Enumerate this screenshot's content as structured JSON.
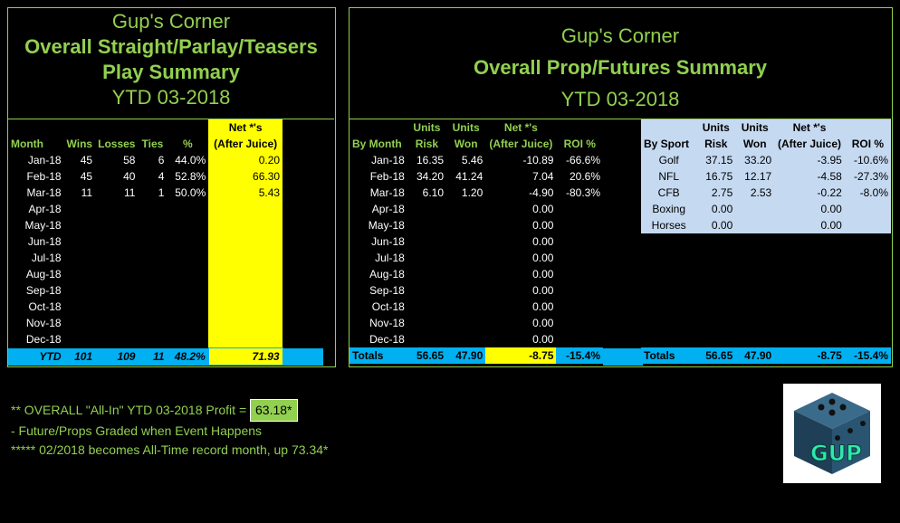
{
  "left_panel": {
    "title_lines": [
      "Gup's Corner",
      "Overall Straight/Parlay/Teasers",
      "Play Summary",
      "YTD 03-2018"
    ],
    "headers": {
      "month": "Month",
      "wins": "Wins",
      "losses": "Losses",
      "ties": "Ties",
      "pct": "%",
      "net_top": "Net *'s",
      "net_bottom": "(After Juice)"
    },
    "rows": [
      {
        "month": "Jan-18",
        "wins": "45",
        "losses": "58",
        "ties": "6",
        "pct": "44.0%",
        "net": "0.20"
      },
      {
        "month": "Feb-18",
        "wins": "45",
        "losses": "40",
        "ties": "4",
        "pct": "52.8%",
        "net": "66.30"
      },
      {
        "month": "Mar-18",
        "wins": "11",
        "losses": "11",
        "ties": "1",
        "pct": "50.0%",
        "net": "5.43"
      },
      {
        "month": "Apr-18",
        "wins": "",
        "losses": "",
        "ties": "",
        "pct": "",
        "net": ""
      },
      {
        "month": "May-18",
        "wins": "",
        "losses": "",
        "ties": "",
        "pct": "",
        "net": ""
      },
      {
        "month": "Jun-18",
        "wins": "",
        "losses": "",
        "ties": "",
        "pct": "",
        "net": ""
      },
      {
        "month": "Jul-18",
        "wins": "",
        "losses": "",
        "ties": "",
        "pct": "",
        "net": ""
      },
      {
        "month": "Aug-18",
        "wins": "",
        "losses": "",
        "ties": "",
        "pct": "",
        "net": ""
      },
      {
        "month": "Sep-18",
        "wins": "",
        "losses": "",
        "ties": "",
        "pct": "",
        "net": ""
      },
      {
        "month": "Oct-18",
        "wins": "",
        "losses": "",
        "ties": "",
        "pct": "",
        "net": ""
      },
      {
        "month": "Nov-18",
        "wins": "",
        "losses": "",
        "ties": "",
        "pct": "",
        "net": ""
      },
      {
        "month": "Dec-18",
        "wins": "",
        "losses": "",
        "ties": "",
        "pct": "",
        "net": ""
      }
    ],
    "totals": {
      "label": "YTD",
      "wins": "101",
      "losses": "109",
      "ties": "11",
      "pct": "48.2%",
      "net": "71.93"
    }
  },
  "right_panel": {
    "title_lines": [
      "Gup's Corner",
      "Overall Prop/Futures Summary",
      "YTD 03-2018"
    ],
    "month_headers": {
      "by_month": "By Month",
      "units_risk_top": "Units",
      "units_risk_bottom": "Risk",
      "units_won_top": "Units",
      "units_won_bottom": "Won",
      "net_top": "Net *'s",
      "net_bottom": "(After Juice)",
      "roi": "ROI %"
    },
    "month_rows": [
      {
        "month": "Jan-18",
        "risk": "16.35",
        "won": "5.46",
        "net": "-10.89",
        "roi": "-66.6%"
      },
      {
        "month": "Feb-18",
        "risk": "34.20",
        "won": "41.24",
        "net": "7.04",
        "roi": "20.6%"
      },
      {
        "month": "Mar-18",
        "risk": "6.10",
        "won": "1.20",
        "net": "-4.90",
        "roi": "-80.3%"
      },
      {
        "month": "Apr-18",
        "risk": "",
        "won": "",
        "net": "0.00",
        "roi": ""
      },
      {
        "month": "May-18",
        "risk": "",
        "won": "",
        "net": "0.00",
        "roi": ""
      },
      {
        "month": "Jun-18",
        "risk": "",
        "won": "",
        "net": "0.00",
        "roi": ""
      },
      {
        "month": "Jul-18",
        "risk": "",
        "won": "",
        "net": "0.00",
        "roi": ""
      },
      {
        "month": "Aug-18",
        "risk": "",
        "won": "",
        "net": "0.00",
        "roi": ""
      },
      {
        "month": "Sep-18",
        "risk": "",
        "won": "",
        "net": "0.00",
        "roi": ""
      },
      {
        "month": "Oct-18",
        "risk": "",
        "won": "",
        "net": "0.00",
        "roi": ""
      },
      {
        "month": "Nov-18",
        "risk": "",
        "won": "",
        "net": "0.00",
        "roi": ""
      },
      {
        "month": "Dec-18",
        "risk": "",
        "won": "",
        "net": "0.00",
        "roi": ""
      }
    ],
    "month_totals": {
      "label": "Totals",
      "risk": "56.65",
      "won": "47.90",
      "net": "-8.75",
      "roi": "-15.4%"
    },
    "sport_headers": {
      "by_sport": "By Sport",
      "units_risk_top": "Units",
      "units_risk_bottom": "Risk",
      "units_won_top": "Units",
      "units_won_bottom": "Won",
      "net_top": "Net *'s",
      "net_bottom": "(After Juice)",
      "roi": "ROI %"
    },
    "sport_rows": [
      {
        "sport": "Golf",
        "risk": "37.15",
        "won": "33.20",
        "net": "-3.95",
        "roi": "-10.6%"
      },
      {
        "sport": "NFL",
        "risk": "16.75",
        "won": "12.17",
        "net": "-4.58",
        "roi": "-27.3%"
      },
      {
        "sport": "CFB",
        "risk": "2.75",
        "won": "2.53",
        "net": "-0.22",
        "roi": "-8.0%"
      },
      {
        "sport": "Boxing",
        "risk": "0.00",
        "won": "",
        "net": "0.00",
        "roi": ""
      },
      {
        "sport": "Horses",
        "risk": "0.00",
        "won": "",
        "net": "0.00",
        "roi": ""
      }
    ],
    "sport_totals": {
      "label": "Totals",
      "risk": "56.65",
      "won": "47.90",
      "net": "-8.75",
      "roi": "-15.4%"
    }
  },
  "notes": {
    "overall_prefix": "** OVERALL \"All-In\" YTD 03-2018 Profit = ",
    "overall_value": "63.18*",
    "line2": "- Future/Props Graded when Event Happens",
    "line3": "***** 02/2018 becomes All-Time record month, up 73.34*"
  },
  "logo": {
    "text": "GUP"
  }
}
